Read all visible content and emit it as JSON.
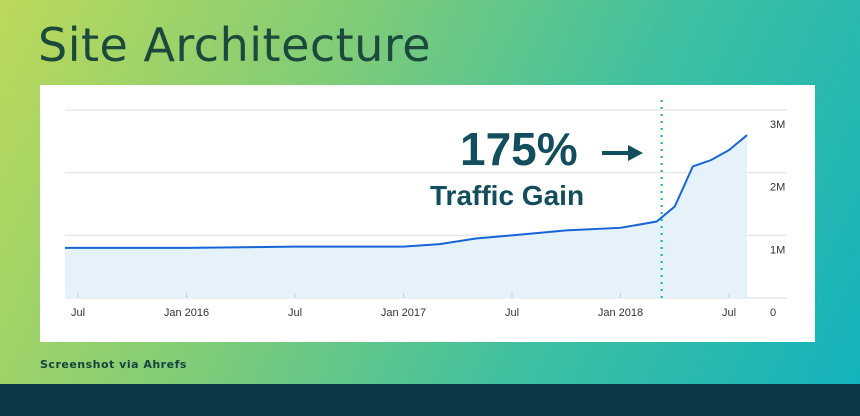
{
  "title": "Site Architecture",
  "credit": "Screenshot via Ahrefs",
  "colors": {
    "line": "#1565d8",
    "fill": "#e6f2fa",
    "annotation": "#134e5e",
    "marker": "#17a7c0",
    "footer": "#0a3845"
  },
  "chart_data": {
    "type": "area",
    "x": [
      "2015-06",
      "2015-07",
      "2016-01",
      "2016-07",
      "2017-01",
      "2017-03",
      "2017-05",
      "2017-07",
      "2017-10",
      "2018-01",
      "2018-03",
      "2018-04",
      "2018-05",
      "2018-06",
      "2018-07",
      "2018-08"
    ],
    "values": [
      0.8,
      0.8,
      0.8,
      0.82,
      0.82,
      0.86,
      0.95,
      1.0,
      1.08,
      1.12,
      1.22,
      1.46,
      2.1,
      2.2,
      2.36,
      2.6
    ],
    "y_unit": "M",
    "ylim": [
      0,
      3
    ],
    "yticks": [
      "0",
      "1M",
      "2M",
      "3M"
    ],
    "xticks": [
      "Jul",
      "Jan 2016",
      "Jul",
      "Jan 2017",
      "Jul",
      "Jan 2018",
      "Jul"
    ],
    "xtick_dates": [
      "2015-07",
      "2016-01",
      "2016-07",
      "2017-01",
      "2017-07",
      "2018-01",
      "2018-07"
    ],
    "grid": true,
    "marker_date": "2018-03",
    "annotation": {
      "value": "175%",
      "label": "Traffic Gain"
    }
  }
}
